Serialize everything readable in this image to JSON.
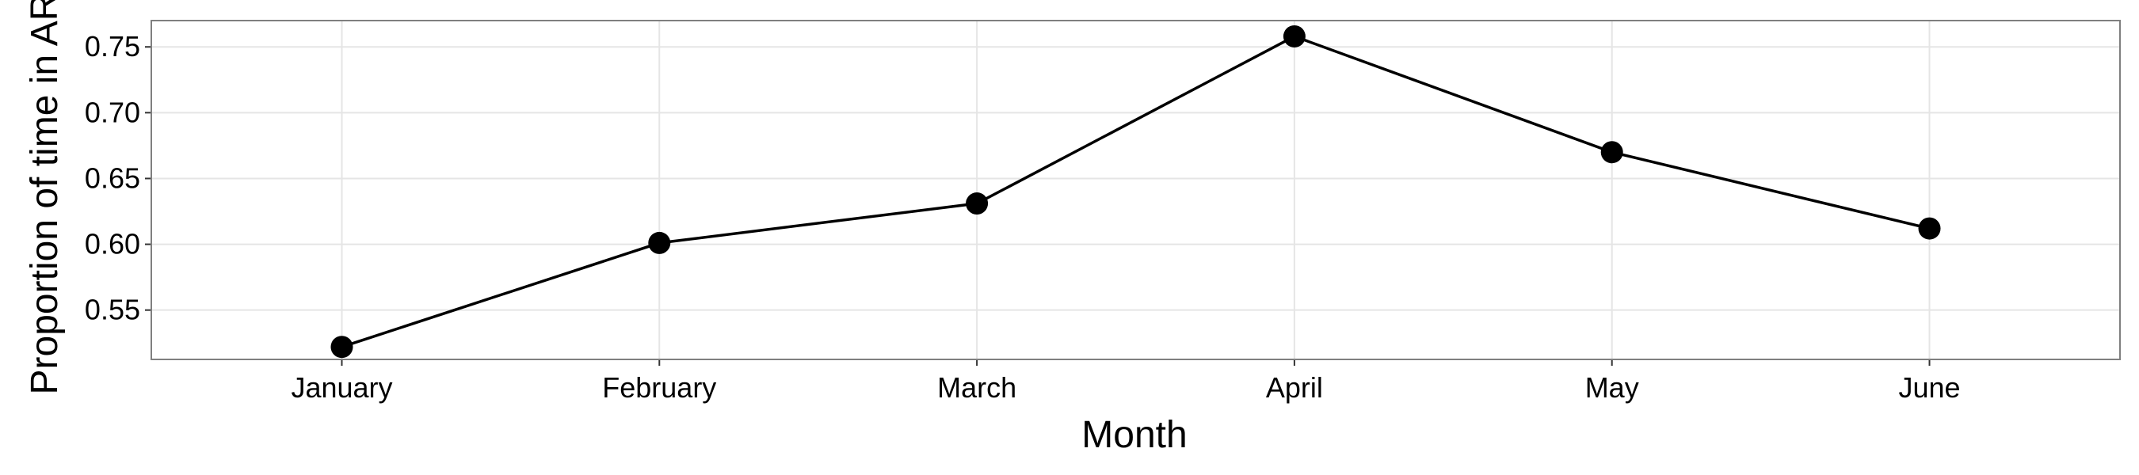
{
  "chart_data": {
    "type": "line",
    "x_label": "Month",
    "y_label": "Proportion of time in AR",
    "categories": [
      "January",
      "February",
      "March",
      "April",
      "May",
      "June"
    ],
    "series": [
      {
        "color": "#000000",
        "values": [
          0.522,
          0.601,
          0.631,
          0.758,
          0.67,
          0.612
        ]
      }
    ],
    "ylim": [
      0.5125,
      0.77
    ],
    "yticks": [
      {
        "value": 0.55,
        "label": "0.55"
      },
      {
        "value": 0.6,
        "label": "0.60"
      },
      {
        "value": 0.65,
        "label": "0.65"
      },
      {
        "value": 0.7,
        "label": "0.70"
      },
      {
        "value": 0.75,
        "label": "0.75"
      }
    ],
    "grid": true
  }
}
